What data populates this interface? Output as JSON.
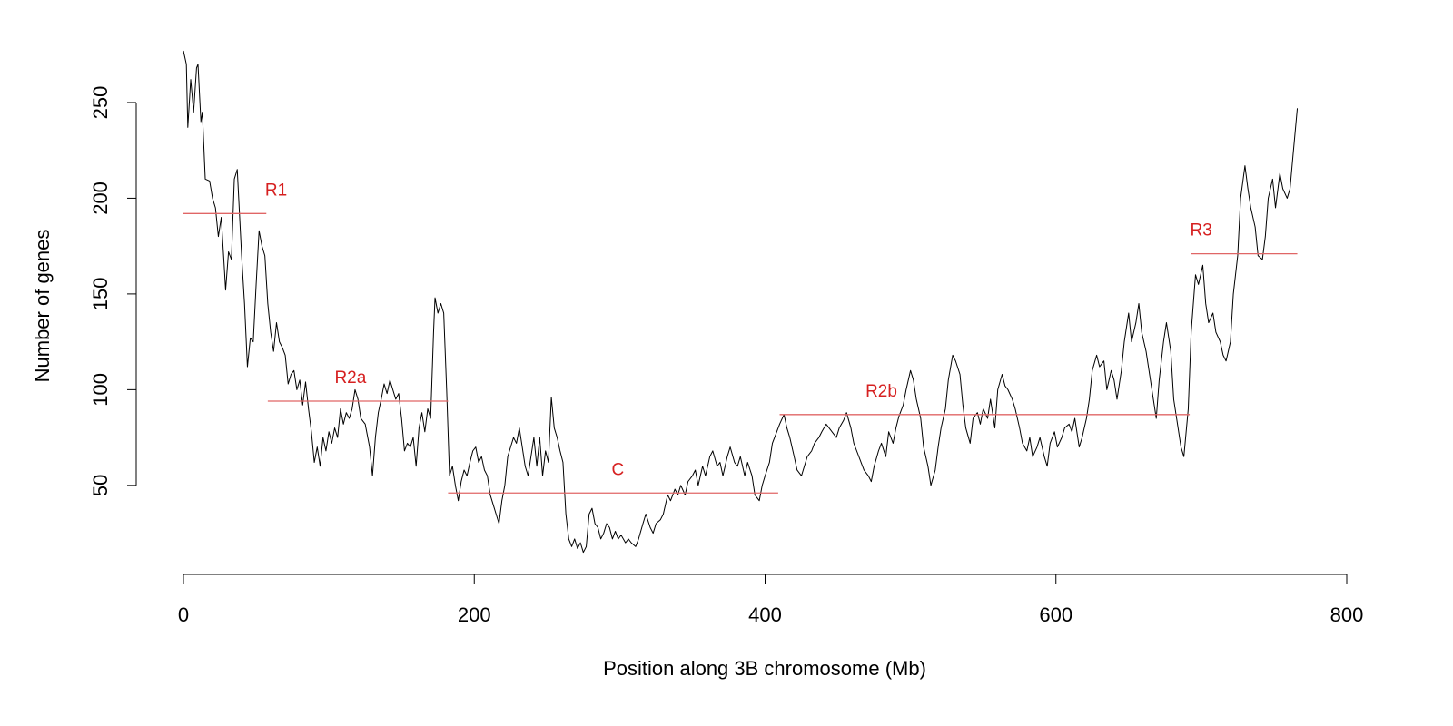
{
  "chart_data": {
    "type": "line",
    "xlabel": "Position along 3B chromosome (Mb)",
    "ylabel": "Number of genes",
    "color": "#000000",
    "xlim": [
      0,
      800
    ],
    "xticks": [
      0,
      200,
      400,
      600,
      800
    ],
    "ylim": [
      12,
      277
    ],
    "yticks": [
      50,
      100,
      150,
      200,
      250
    ],
    "x": [
      0,
      2,
      3,
      5,
      7,
      9,
      10,
      12,
      13,
      15,
      18,
      20,
      22,
      24,
      26,
      28,
      29,
      31,
      33,
      35,
      37,
      38,
      40,
      42,
      44,
      46,
      48,
      50,
      52,
      54,
      56,
      58,
      60,
      62,
      64,
      66,
      68,
      70,
      72,
      74,
      76,
      78,
      80,
      82,
      84,
      86,
      88,
      90,
      92,
      94,
      96,
      98,
      100,
      102,
      104,
      106,
      108,
      110,
      112,
      114,
      116,
      118,
      120,
      122,
      125,
      128,
      130,
      132,
      134,
      136,
      138,
      140,
      142,
      144,
      146,
      148,
      150,
      152,
      154,
      156,
      158,
      160,
      162,
      164,
      166,
      168,
      170,
      172,
      173,
      175,
      177,
      179,
      181,
      183,
      185,
      187,
      189,
      191,
      193,
      195,
      197,
      199,
      201,
      203,
      205,
      207,
      209,
      211,
      213,
      215,
      217,
      219,
      221,
      223,
      225,
      227,
      229,
      231,
      233,
      235,
      237,
      239,
      241,
      243,
      245,
      247,
      249,
      251,
      253,
      255,
      257,
      259,
      261,
      263,
      265,
      267,
      269,
      271,
      273,
      275,
      277,
      279,
      281,
      283,
      285,
      287,
      289,
      291,
      293,
      295,
      297,
      299,
      301,
      304,
      306,
      308,
      311,
      313,
      316,
      318,
      321,
      323,
      325,
      328,
      330,
      333,
      335,
      338,
      340,
      342,
      345,
      347,
      350,
      352,
      354,
      357,
      359,
      362,
      364,
      367,
      369,
      371,
      374,
      376,
      379,
      381,
      383,
      386,
      388,
      391,
      393,
      396,
      398,
      400,
      403,
      405,
      408,
      410,
      413,
      415,
      417,
      420,
      422,
      425,
      427,
      429,
      432,
      434,
      437,
      439,
      442,
      444,
      446,
      449,
      451,
      454,
      456,
      459,
      461,
      463,
      466,
      468,
      471,
      473,
      475,
      478,
      480,
      483,
      485,
      488,
      490,
      492,
      495,
      497,
      500,
      502,
      504,
      507,
      509,
      512,
      514,
      517,
      519,
      521,
      524,
      526,
      529,
      531,
      534,
      536,
      538,
      541,
      543,
      546,
      548,
      550,
      553,
      555,
      558,
      560,
      563,
      565,
      567,
      570,
      572,
      575,
      577,
      580,
      582,
      584,
      587,
      589,
      592,
      594,
      596,
      599,
      601,
      604,
      606,
      609,
      611,
      613,
      616,
      618,
      621,
      623,
      625,
      628,
      630,
      633,
      635,
      638,
      640,
      642,
      645,
      647,
      650,
      652,
      655,
      657,
      659,
      662,
      664,
      667,
      669,
      671,
      674,
      676,
      679,
      681,
      684,
      686,
      688,
      691,
      693,
      696,
      698,
      701,
      703,
      705,
      708,
      710,
      713,
      715,
      717,
      720,
      722,
      725,
      727,
      730,
      732,
      734,
      737,
      739,
      742,
      744,
      746,
      749,
      751,
      754,
      756,
      759,
      761,
      763,
      766
    ],
    "values": [
      277,
      270,
      237,
      262,
      245,
      268,
      270,
      240,
      245,
      210,
      209,
      200,
      195,
      180,
      190,
      165,
      152,
      172,
      168,
      210,
      215,
      200,
      170,
      145,
      112,
      127,
      125,
      155,
      183,
      175,
      170,
      145,
      130,
      120,
      135,
      125,
      122,
      118,
      103,
      108,
      110,
      100,
      105,
      92,
      104,
      90,
      78,
      62,
      70,
      60,
      75,
      68,
      78,
      72,
      80,
      75,
      90,
      82,
      88,
      85,
      90,
      100,
      95,
      85,
      82,
      70,
      55,
      75,
      88,
      95,
      103,
      98,
      105,
      100,
      95,
      98,
      85,
      68,
      72,
      70,
      75,
      60,
      80,
      88,
      78,
      90,
      85,
      130,
      148,
      140,
      145,
      140,
      100,
      55,
      60,
      50,
      42,
      52,
      58,
      55,
      62,
      68,
      70,
      62,
      65,
      58,
      55,
      45,
      40,
      35,
      30,
      42,
      50,
      65,
      70,
      75,
      72,
      80,
      70,
      60,
      55,
      65,
      75,
      60,
      75,
      55,
      68,
      62,
      96,
      80,
      75,
      68,
      62,
      35,
      22,
      18,
      22,
      17,
      20,
      15,
      18,
      35,
      38,
      30,
      28,
      22,
      25,
      30,
      28,
      22,
      26,
      22,
      24,
      20,
      22,
      20,
      18,
      22,
      30,
      35,
      28,
      25,
      30,
      32,
      35,
      45,
      42,
      48,
      45,
      50,
      45,
      52,
      55,
      58,
      50,
      60,
      55,
      65,
      68,
      60,
      62,
      55,
      65,
      70,
      62,
      60,
      65,
      55,
      62,
      55,
      45,
      42,
      50,
      55,
      62,
      72,
      78,
      82,
      87,
      80,
      75,
      65,
      58,
      55,
      60,
      65,
      68,
      72,
      75,
      78,
      82,
      80,
      78,
      75,
      80,
      84,
      88,
      80,
      72,
      68,
      62,
      58,
      55,
      52,
      60,
      68,
      72,
      65,
      78,
      72,
      80,
      86,
      92,
      100,
      110,
      105,
      95,
      85,
      70,
      60,
      50,
      58,
      70,
      80,
      90,
      105,
      118,
      115,
      108,
      92,
      80,
      72,
      85,
      88,
      82,
      90,
      85,
      95,
      80,
      100,
      108,
      102,
      100,
      95,
      90,
      80,
      72,
      68,
      75,
      65,
      70,
      75,
      65,
      60,
      72,
      78,
      70,
      75,
      80,
      82,
      78,
      85,
      70,
      75,
      85,
      95,
      110,
      118,
      112,
      115,
      100,
      110,
      105,
      95,
      110,
      125,
      140,
      125,
      135,
      145,
      130,
      120,
      110,
      95,
      85,
      105,
      125,
      135,
      120,
      95,
      80,
      70,
      65,
      90,
      130,
      160,
      155,
      165,
      145,
      135,
      140,
      130,
      125,
      118,
      115,
      125,
      150,
      170,
      200,
      217,
      205,
      195,
      185,
      170,
      168,
      180,
      200,
      210,
      195,
      213,
      205,
      200,
      205,
      222,
      247
    ],
    "region_color": "#e06666",
    "region_label_color": "#d62020",
    "regions": [
      {
        "label": "R1",
        "x": [
          0,
          57
        ],
        "value": 192
      },
      {
        "label": "R2a",
        "x": [
          58,
          182
        ],
        "value": 94
      },
      {
        "label": "C",
        "x": [
          182,
          409
        ],
        "value": 46
      },
      {
        "label": "R2b",
        "x": [
          410,
          692
        ],
        "value": 87
      },
      {
        "label": "R3",
        "x": [
          693,
          766
        ],
        "value": 171
      }
    ]
  }
}
